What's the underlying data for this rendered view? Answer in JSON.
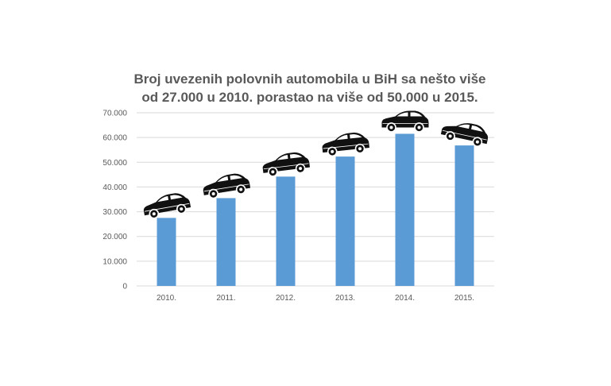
{
  "chart_data": {
    "type": "bar",
    "title_lines": [
      "Broj uvezenih polovnih automobila u BiH sa nešto više",
      "od 27.000 u 2010. porastao na više od 50.000 u 2015."
    ],
    "categories": [
      "2010.",
      "2011.",
      "2012.",
      "2013.",
      "2014.",
      "2015."
    ],
    "values": [
      27500,
      35500,
      44200,
      52300,
      61500,
      56800
    ],
    "ylim": [
      0,
      70000
    ],
    "yticks": [
      0,
      10000,
      20000,
      30000,
      40000,
      50000,
      60000,
      70000
    ],
    "ytick_labels": [
      "0",
      "10.000",
      "20.000",
      "30.000",
      "40.000",
      "50.000",
      "60.000",
      "70.000"
    ],
    "grid": true,
    "legend": "none",
    "bar_color": "#5b9bd5",
    "gridline_color": "#d9d9d9",
    "decoration_icon": "car-icon"
  }
}
